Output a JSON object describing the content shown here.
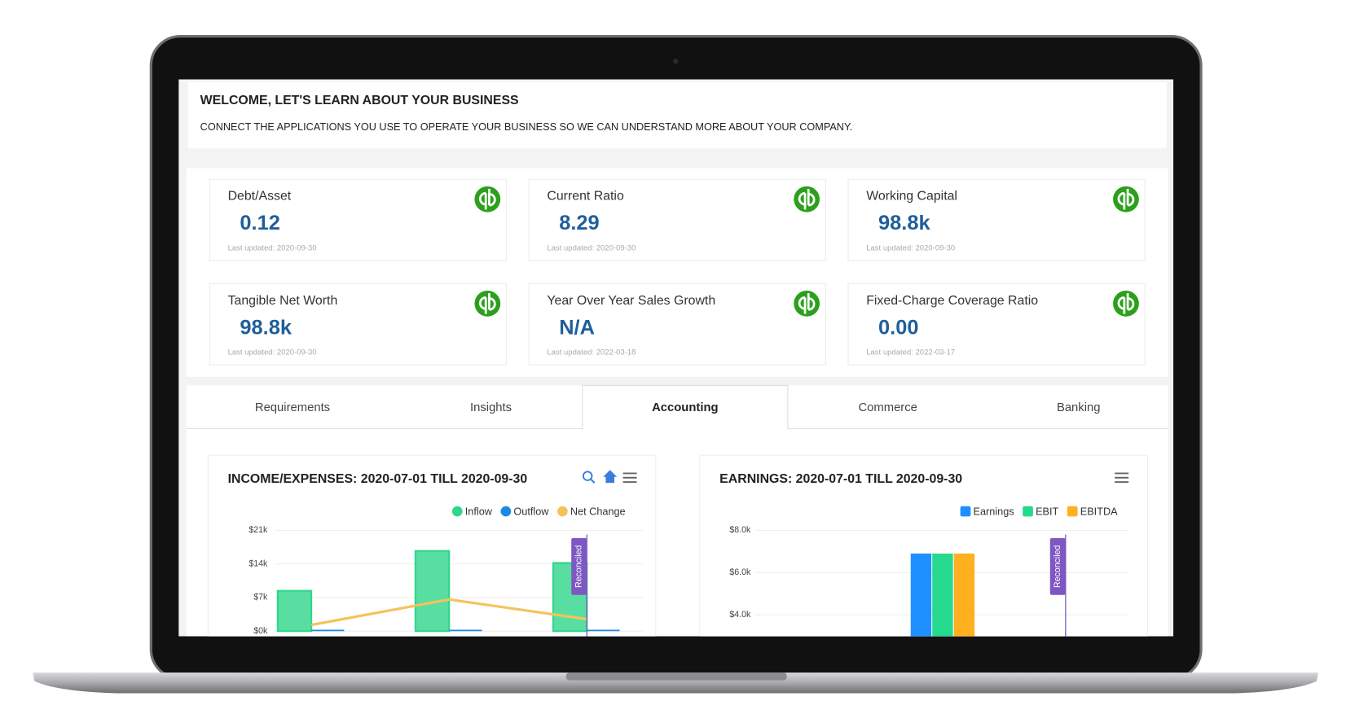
{
  "header": {
    "title": "WELCOME, LET'S LEARN ABOUT YOUR BUSINESS",
    "subtitle": "CONNECT THE APPLICATIONS YOU USE TO OPERATE YOUR BUSINESS SO WE CAN UNDERSTAND MORE ABOUT YOUR COMPANY."
  },
  "metrics": [
    {
      "label": "Debt/Asset",
      "value": "0.12",
      "updated": "Last updated: 2020-09-30"
    },
    {
      "label": "Current Ratio",
      "value": "8.29",
      "updated": "Last updated: 2020-09-30"
    },
    {
      "label": "Working Capital",
      "value": "98.8k",
      "updated": "Last updated: 2020-09-30"
    },
    {
      "label": "Tangible Net Worth",
      "value": "98.8k",
      "updated": "Last updated: 2020-09-30"
    },
    {
      "label": "Year Over Year Sales Growth",
      "value": "N/A",
      "updated": "Last updated: 2022-03-18"
    },
    {
      "label": "Fixed-Charge Coverage Ratio",
      "value": "0.00",
      "updated": "Last updated: 2022-03-17"
    }
  ],
  "tabs": {
    "items": [
      "Requirements",
      "Insights",
      "Accounting",
      "Commerce",
      "Banking"
    ],
    "active": 2
  },
  "chart_data": [
    {
      "type": "bar",
      "title": "INCOME/EXPENSES: 2020-07-01 TILL 2020-09-30",
      "categories": [
        null,
        null,
        null
      ],
      "legend_marker": "circle",
      "grid": true,
      "series": [
        {
          "name": "Inflow",
          "color": "#2fd68b",
          "values": [
            8400,
            16700,
            14200
          ]
        },
        {
          "name": "Outflow",
          "color": "#1e88e5",
          "values": [
            300,
            300,
            300
          ]
        },
        {
          "name": "Net Change",
          "color": "#f6c25b",
          "type": "line",
          "values": [
            1300,
            6600,
            2500
          ]
        }
      ],
      "ylim": [
        0,
        21000
      ],
      "yticks": [
        {
          "value": 0,
          "label": "$0k"
        },
        {
          "value": 7000,
          "label": "$7k"
        },
        {
          "value": 14000,
          "label": "$14k"
        },
        {
          "value": 21000,
          "label": "$21k"
        }
      ],
      "annotation": {
        "label": "Reconciled",
        "x": 2
      }
    },
    {
      "type": "bar",
      "title": "EARNINGS: 2020-07-01 TILL 2020-09-30",
      "categories": [
        null,
        null,
        null
      ],
      "legend_marker": "square",
      "grid": true,
      "series": [
        {
          "name": "Earnings",
          "color": "#1e90ff",
          "values": [
            0,
            6900,
            0
          ]
        },
        {
          "name": "EBIT",
          "color": "#25d98f",
          "values": [
            0,
            6900,
            0
          ]
        },
        {
          "name": "EBITDA",
          "color": "#ffb020",
          "values": [
            0,
            6900,
            0
          ]
        }
      ],
      "ylim": [
        0,
        8000
      ],
      "yticks": [
        {
          "value": 4000,
          "label": "$4.0k"
        },
        {
          "value": 6000,
          "label": "$6.0k"
        },
        {
          "value": 8000,
          "label": "$8.0k"
        }
      ],
      "annotation": {
        "label": "Reconciled",
        "x": 2
      }
    }
  ]
}
